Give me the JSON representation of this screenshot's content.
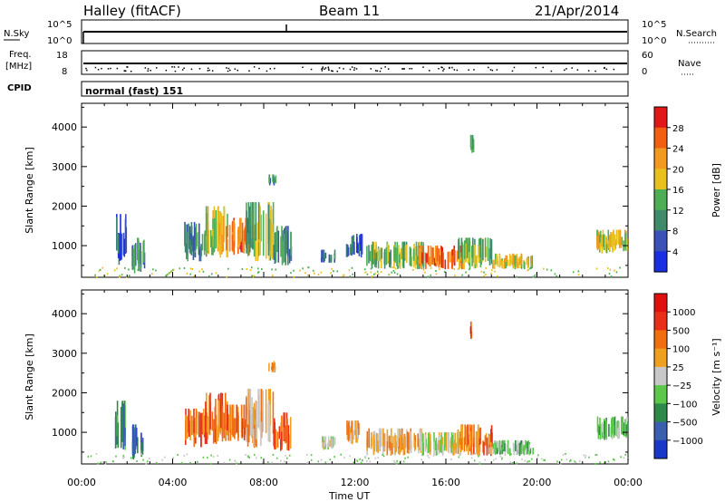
{
  "header": {
    "title": "Halley (fitACF)",
    "beam": "Beam 11",
    "date": "21/Apr/2014"
  },
  "labels": {
    "nsky": "N.Sky",
    "nsearch": "N.Search",
    "freq_l1": "Freq.",
    "freq_l2": "[MHz]",
    "nave": "Nave",
    "cpid": "CPID",
    "cpid_value": "normal (fast) 151",
    "sky_ticks": [
      "10^5",
      "10^0"
    ],
    "freq_ticks": [
      "18",
      "8"
    ],
    "nave_ticks": [
      "60",
      "0"
    ],
    "xlabel": "Time UT"
  },
  "chart_data": [
    {
      "type": "heatmap",
      "ylabel": "Slant Range [km]",
      "x_ticks": [
        "00:00",
        "04:00",
        "08:00",
        "12:00",
        "16:00",
        "20:00",
        "00:00"
      ],
      "xlim_hours": [
        0,
        24
      ],
      "y_ticks": [
        1000,
        2000,
        3000,
        4000
      ],
      "ylim": [
        200,
        4600
      ],
      "colorbar": {
        "label": "Power [dB]",
        "ticks": [
          "4",
          "8",
          "12",
          "16",
          "20",
          "24",
          "28"
        ],
        "colors": [
          "#1a2fe0",
          "#3a52b8",
          "#3f8a6a",
          "#4fae55",
          "#e8c020",
          "#f29a20",
          "#f06010",
          "#e01818"
        ]
      },
      "blobs": [
        {
          "t0": 1.45,
          "t1": 1.95,
          "r0": 500,
          "r1": 1800,
          "c": 1
        },
        {
          "t0": 2.2,
          "t1": 2.8,
          "r0": 300,
          "r1": 1200,
          "c": 2
        },
        {
          "t0": 4.5,
          "t1": 5.5,
          "r0": 600,
          "r1": 1600,
          "c": 2
        },
        {
          "t0": 5.4,
          "t1": 6.4,
          "r0": 700,
          "r1": 2000,
          "c": 4
        },
        {
          "t0": 6.3,
          "t1": 7.6,
          "r0": 750,
          "r1": 1700,
          "c": 6
        },
        {
          "t0": 7.2,
          "t1": 8.4,
          "r0": 600,
          "r1": 2100,
          "c": 3
        },
        {
          "t0": 8.4,
          "t1": 9.2,
          "r0": 500,
          "r1": 1500,
          "c": 2
        },
        {
          "t0": 8.2,
          "t1": 8.5,
          "r0": 2500,
          "r1": 2800,
          "c": 2
        },
        {
          "t0": 10.5,
          "t1": 11.1,
          "r0": 550,
          "r1": 900,
          "c": 2
        },
        {
          "t0": 11.6,
          "t1": 12.3,
          "r0": 700,
          "r1": 1300,
          "c": 1
        },
        {
          "t0": 12.5,
          "t1": 15.0,
          "r0": 400,
          "r1": 1100,
          "c": 3
        },
        {
          "t0": 14.8,
          "t1": 16.7,
          "r0": 400,
          "r1": 1000,
          "c": 6
        },
        {
          "t0": 16.5,
          "t1": 18.0,
          "r0": 400,
          "r1": 1200,
          "c": 3
        },
        {
          "t0": 18.0,
          "t1": 19.8,
          "r0": 400,
          "r1": 800,
          "c": 4
        },
        {
          "t0": 17.05,
          "t1": 17.2,
          "r0": 3300,
          "r1": 3800,
          "c": 3
        },
        {
          "t0": 22.6,
          "t1": 24.0,
          "r0": 800,
          "r1": 1400,
          "c": 4
        }
      ]
    },
    {
      "type": "heatmap",
      "ylabel": "Slant Range [km]",
      "x_ticks": [
        "00:00",
        "04:00",
        "08:00",
        "12:00",
        "16:00",
        "20:00",
        "00:00"
      ],
      "xlim_hours": [
        0,
        24
      ],
      "y_ticks": [
        1000,
        2000,
        3000,
        4000
      ],
      "ylim": [
        200,
        4600
      ],
      "colorbar": {
        "label": "Velocity [m s⁻¹]",
        "ticks": [
          "1000",
          "500",
          "100",
          "25",
          "−25",
          "−100",
          "−500",
          "−1000"
        ],
        "colors": [
          "#1a38c8",
          "#3a5fb0",
          "#2e8a4a",
          "#5cc84a",
          "#c8c8c8",
          "#f0a020",
          "#f07010",
          "#e83018",
          "#e01010"
        ]
      },
      "blobs": [
        {
          "t0": 1.45,
          "t1": 1.95,
          "r0": 500,
          "r1": 1800,
          "c": 2
        },
        {
          "t0": 2.2,
          "t1": 2.8,
          "r0": 300,
          "r1": 1200,
          "c": 1
        },
        {
          "t0": 4.5,
          "t1": 5.5,
          "r0": 600,
          "r1": 1600,
          "c": 6
        },
        {
          "t0": 5.4,
          "t1": 6.4,
          "r0": 700,
          "r1": 2000,
          "c": 6
        },
        {
          "t0": 6.3,
          "t1": 7.6,
          "r0": 750,
          "r1": 1700,
          "c": 6
        },
        {
          "t0": 7.2,
          "t1": 8.4,
          "r0": 600,
          "r1": 2100,
          "c": 5
        },
        {
          "t0": 8.4,
          "t1": 9.2,
          "r0": 500,
          "r1": 1500,
          "c": 6
        },
        {
          "t0": 8.2,
          "t1": 8.5,
          "r0": 2500,
          "r1": 2800,
          "c": 5
        },
        {
          "t0": 10.5,
          "t1": 11.1,
          "r0": 550,
          "r1": 900,
          "c": 4
        },
        {
          "t0": 11.6,
          "t1": 12.3,
          "r0": 700,
          "r1": 1300,
          "c": 5
        },
        {
          "t0": 12.5,
          "t1": 15.0,
          "r0": 400,
          "r1": 1100,
          "c": 5
        },
        {
          "t0": 14.8,
          "t1": 16.7,
          "r0": 400,
          "r1": 1000,
          "c": 4
        },
        {
          "t0": 16.5,
          "t1": 18.0,
          "r0": 400,
          "r1": 1200,
          "c": 6
        },
        {
          "t0": 18.0,
          "t1": 19.8,
          "r0": 400,
          "r1": 800,
          "c": 3
        },
        {
          "t0": 17.05,
          "t1": 17.2,
          "r0": 3300,
          "r1": 3800,
          "c": 7
        },
        {
          "t0": 22.6,
          "t1": 24.0,
          "r0": 800,
          "r1": 1400,
          "c": 3
        }
      ]
    }
  ]
}
